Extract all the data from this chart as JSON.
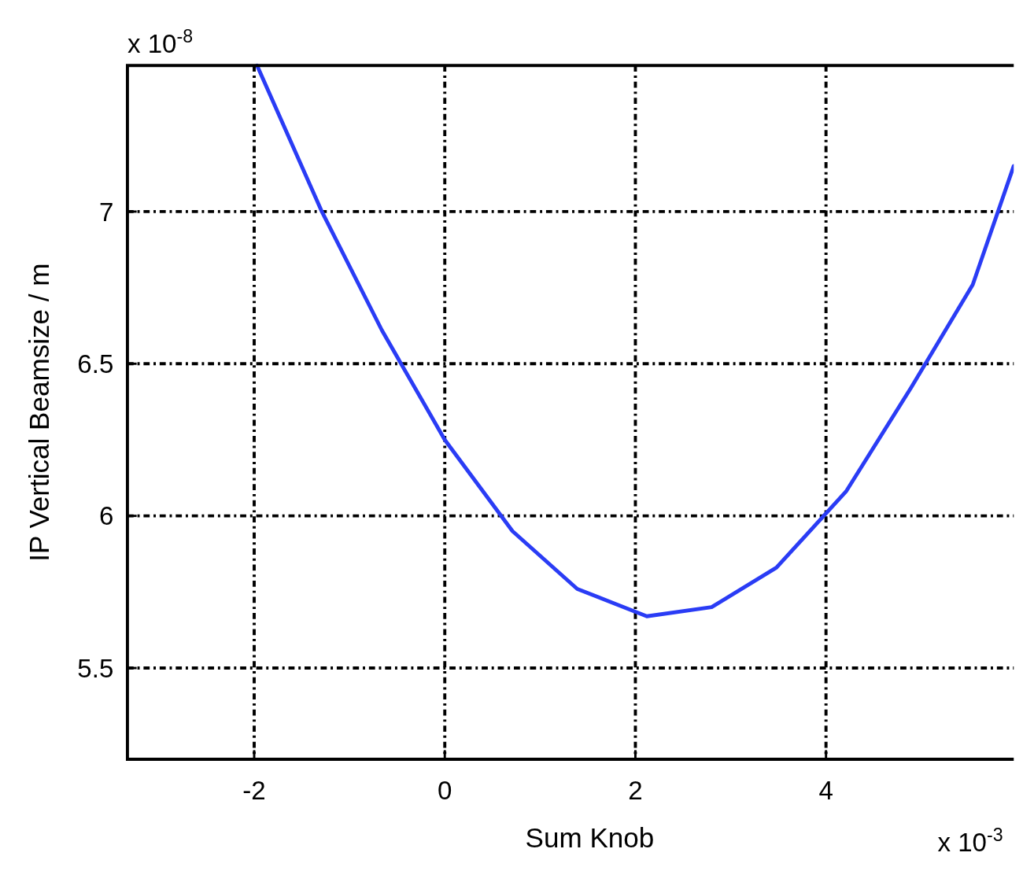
{
  "chart_data": {
    "type": "line",
    "xlabel": "Sum Knob",
    "ylabel": "IP Vertical Beamsize / m",
    "annotations": [
      "x 10$^{-8}$",
      "x 10$^{-3}$"
    ],
    "x": [
      -1.97,
      -1.29,
      -0.66,
      0,
      0.71,
      1.39,
      2.12,
      2.8,
      3.48,
      4.21,
      4.89,
      5.54,
      5.97
    ],
    "series": [
      {
        "color": "#2a3cf5",
        "values": [
          7.48,
          7.0,
          6.61,
          6.25,
          5.95,
          5.76,
          5.67,
          5.7,
          5.83,
          6.08,
          6.42,
          6.76,
          7.15
        ]
      }
    ],
    "xlim": [
      -3.33,
      5.97
    ],
    "ylim": [
      5.2,
      7.48
    ],
    "xticks": [
      -2,
      0,
      2,
      4
    ],
    "yticks": [
      5.5,
      6,
      6.5,
      7
    ],
    "grid": true,
    "line_style": "solid",
    "marker": "none"
  }
}
